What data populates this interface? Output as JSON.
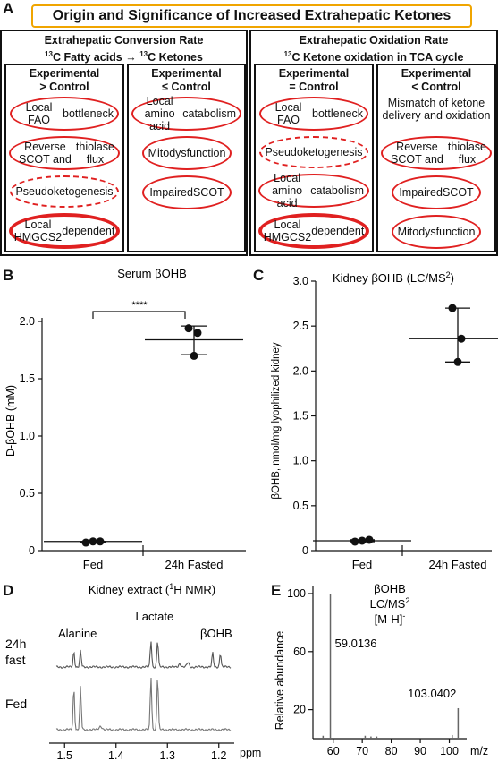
{
  "panel_a": {
    "letter": "A",
    "title": "Origin and Significance of Increased Extrahepatic Ketones",
    "left": {
      "header1": "Extrahepatic Conversion Rate",
      "header2_sup1": "13",
      "header2_a": "C Fatty acids → ",
      "header2_sup2": "13",
      "header2_b": "C Ketones",
      "col1": {
        "head1": "Experimental",
        "head2": "> Control",
        "items": [
          {
            "line1": "Local FAO",
            "line2": "bottleneck",
            "style": "solid"
          },
          {
            "line1": "Reverse SCOT and",
            "line2": "thiolase flux",
            "style": "solid"
          },
          {
            "line1": "Pseudoketogenesis",
            "line2": "",
            "style": "dashed"
          },
          {
            "line1": "Local HMGCS2",
            "line2": "dependent",
            "style": "thick"
          }
        ]
      },
      "col2": {
        "head1": "Experimental",
        "head2": "≤ Control",
        "items": [
          {
            "line1": "Local amino acid",
            "line2": "catabolism",
            "style": "solid"
          },
          {
            "line1": "Mito",
            "line2": "dysfunction",
            "style": "solid"
          },
          {
            "line1": "Impaired",
            "line2": "SCOT",
            "style": "solid"
          }
        ]
      }
    },
    "right": {
      "header1": "Extrahepatic Oxidation Rate",
      "header2_sup": "13",
      "header2_a": "C Ketone oxidation in TCA cycle",
      "col1": {
        "head1": "Experimental",
        "head2": "= Control",
        "items": [
          {
            "line1": "Local FAO",
            "line2": "bottleneck",
            "style": "solid"
          },
          {
            "line1": "Pseudoketogenesis",
            "line2": "",
            "style": "dashed"
          },
          {
            "line1": "Local amino acid",
            "line2": "catabolism",
            "style": "solid"
          },
          {
            "line1": "Local HMGCS2",
            "line2": "dependent",
            "style": "thick"
          }
        ]
      },
      "col2": {
        "head1": "Experimental",
        "head2": "< Control",
        "note1": "Mismatch of ketone",
        "note2": "delivery and oxidation",
        "items": [
          {
            "line1": "Reverse SCOT and",
            "line2": "thiolase flux",
            "style": "solid"
          },
          {
            "line1": "Impaired",
            "line2": "SCOT",
            "style": "solid"
          },
          {
            "line1": "Mito",
            "line2": "dysfunction",
            "style": "solid"
          }
        ]
      }
    }
  },
  "chart_data": [
    {
      "panel": "B",
      "type": "scatter",
      "title": "Serum βOHB",
      "ylabel": "D-βOHB (mM)",
      "categories": [
        "Fed",
        "24h Fasted"
      ],
      "ylim": [
        0,
        2.0
      ],
      "yticks": [
        "0",
        "0.5",
        "1.0",
        "1.5",
        "2.0"
      ],
      "points": [
        [
          0.07,
          0.08,
          0.08
        ],
        [
          1.7,
          1.9,
          1.94
        ]
      ],
      "mean": [
        0.08,
        1.84
      ],
      "error": [
        [
          0.07,
          0.08
        ],
        [
          1.71,
          1.96
        ]
      ],
      "significance": "****"
    },
    {
      "panel": "C",
      "type": "scatter",
      "title_a": "Kidney βOHB (LC/MS",
      "title_sup": "2",
      "title_b": ")",
      "ylabel": "βOHB, nmol/mg lyophilized kidney",
      "categories": [
        "Fed",
        "24h Fasted"
      ],
      "ylim": [
        0,
        3.0
      ],
      "yticks": [
        "0",
        "0.5",
        "1.0",
        "1.5",
        "2.0",
        "2.5",
        "3.0"
      ],
      "points": [
        [
          0.1,
          0.11,
          0.12
        ],
        [
          2.1,
          2.36,
          2.7
        ]
      ],
      "mean": [
        0.11,
        2.36
      ],
      "error": [
        [
          0.1,
          0.12
        ],
        [
          2.1,
          2.7
        ]
      ]
    },
    {
      "panel": "D",
      "type": "line",
      "title_a": "Kidney extract (",
      "title_sup": "1",
      "title_b": "H NMR)",
      "xlabel": "ppm",
      "xticks": [
        "1.5",
        "1.4",
        "1.3",
        "1.2"
      ],
      "xlim": [
        1.53,
        1.17
      ],
      "series": [
        {
          "name": "24h fast",
          "name_line1": "24h",
          "name_line2": "fast"
        },
        {
          "name": "Fed"
        }
      ],
      "peaks": [
        {
          "label": "Alanine",
          "ppm": 1.475
        },
        {
          "label": "Lactate",
          "ppm": 1.325
        },
        {
          "label": "βOHB",
          "ppm": 1.205
        }
      ]
    },
    {
      "panel": "E",
      "type": "bar",
      "title_line1": "βOHB",
      "title_line2_a": "LC/MS",
      "title_line2_sup": "2",
      "title_line3_a": "[M-H]",
      "title_line3_sup": "-",
      "xlabel": "m/z",
      "ylabel": "Relative abundance",
      "xticks": [
        "60",
        "70",
        "80",
        "90",
        "100"
      ],
      "yticks": [
        "20",
        "60",
        "100"
      ],
      "xlim": [
        53,
        106
      ],
      "ylim": [
        0,
        100
      ],
      "peaks": [
        {
          "mz": 59.0136,
          "abundance": 100,
          "label": "59.0136"
        },
        {
          "mz": 103.0402,
          "abundance": 21,
          "label": "103.0402"
        },
        {
          "mz": 56.5,
          "abundance": 2,
          "label": ""
        },
        {
          "mz": 71.0,
          "abundance": 2,
          "label": ""
        },
        {
          "mz": 73.0,
          "abundance": 1.5,
          "label": ""
        },
        {
          "mz": 75.0,
          "abundance": 1.5,
          "label": ""
        },
        {
          "mz": 101.0,
          "abundance": 2.5,
          "label": ""
        }
      ]
    }
  ]
}
